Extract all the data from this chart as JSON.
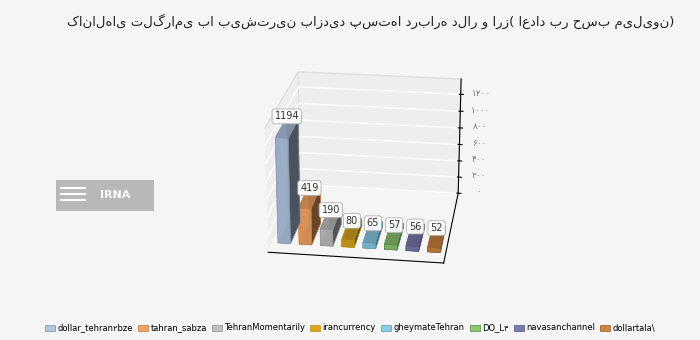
{
  "title": "کانال‌های تلگرامی با بیشترین بازدید پست‌ها درباره دلار و ارز( اعداد بر حسب میلیون)",
  "channels": [
    "dollar_tehran۲bze",
    "tahran_sabza",
    "TehranMomentarily",
    "irancurrency",
    "gheymateTehran",
    "DO_L۴",
    "navasanchannel",
    "dollartala\\"
  ],
  "values": [
    1194,
    419,
    190,
    80,
    65,
    57,
    56,
    52
  ],
  "colors_face": [
    "#b0c4de",
    "#f4a460",
    "#c0c0c0",
    "#daa520",
    "#87ceeb",
    "#90c870",
    "#7b7bb0",
    "#cd853f"
  ],
  "colors_top": [
    "#d0dff0",
    "#fdc890",
    "#d8d8d8",
    "#f0c840",
    "#b0e0f8",
    "#a8dc88",
    "#9898c8",
    "#e0a060"
  ],
  "colors_side": [
    "#8090b0",
    "#c07840",
    "#909090",
    "#b09010",
    "#5898a8",
    "#508848",
    "#505080",
    "#906030"
  ],
  "yticks": [
    0,
    200,
    400,
    600,
    800,
    1000,
    1200
  ],
  "ytick_labels": [
    "۰",
    "۲۰۰",
    "۴۰۰",
    "۶۰۰",
    "۸۰۰",
    "۱۰۰۰",
    "۱۲۰۰"
  ],
  "value_labels": [
    "1194",
    "419",
    "190",
    "80",
    "65",
    "57",
    "56",
    "52"
  ],
  "legend_labels": [
    "dollar_tehran۲bze",
    "tahran_sabza",
    "TehranMomentarily",
    "irancurrency",
    "gheymateTehran",
    "DO_L۴",
    "navasanchannel",
    "dollartala\\"
  ],
  "background_color": "#f5f5f5",
  "bar_depth": 0.7,
  "bar_width": 0.65,
  "elev": 22,
  "azim": -82
}
